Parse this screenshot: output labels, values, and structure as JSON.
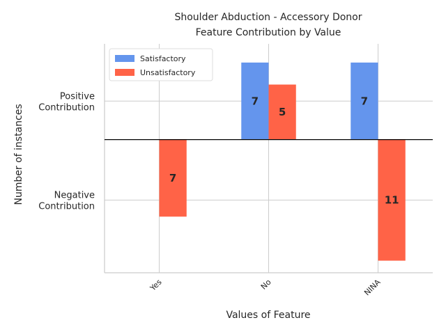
{
  "chart_data": {
    "type": "bar",
    "title_lines": [
      "Shoulder Abduction - Accessory Donor",
      "Feature Contribution by Value"
    ],
    "xlabel": "Values of Feature",
    "ylabel": "Number of instances",
    "categories": [
      "Yes",
      "No",
      "NINA"
    ],
    "series": [
      {
        "name": "Satisfactory",
        "color": "#6495ED",
        "values": [
          0,
          7,
          7
        ],
        "labels": [
          "",
          "7",
          "7"
        ]
      },
      {
        "name": "Unsatisfactory",
        "color": "#FF6347",
        "values": [
          -7,
          5,
          -11
        ],
        "labels": [
          "7",
          "5",
          "11"
        ]
      }
    ],
    "ytick_labels": [
      {
        "value": 3.5,
        "lines": [
          "Positive",
          "Contribution"
        ]
      },
      {
        "value": -5.5,
        "lines": [
          "Negative",
          "Contribution"
        ]
      }
    ],
    "ylim": [
      -12.1,
      8.7
    ],
    "legend_position": "top-left",
    "grid": true
  }
}
